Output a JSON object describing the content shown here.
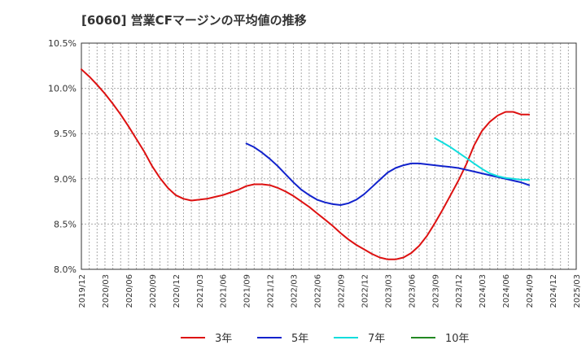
{
  "chart_data": {
    "type": "line",
    "title": "[6060]  営業CFマージンの平均値の推移",
    "xlabel": "",
    "ylabel": "",
    "ylim": [
      8.0,
      10.5
    ],
    "y_ticks": [
      "10.5%",
      "10.0%",
      "9.5%",
      "9.0%",
      "8.5%",
      "8.0%"
    ],
    "x_ticks": [
      "2019/12",
      "2020/03",
      "2020/06",
      "2020/09",
      "2020/12",
      "2021/03",
      "2021/06",
      "2021/09",
      "2021/12",
      "2022/03",
      "2022/06",
      "2022/09",
      "2022/12",
      "2023/03",
      "2023/06",
      "2023/09",
      "2023/12",
      "2024/03",
      "2024/06",
      "2024/09",
      "2024/12",
      "2025/03"
    ],
    "grid": true,
    "legend_position": "bottom",
    "series": [
      {
        "name": "3年",
        "color": "#dd1111",
        "x": [
          "2019/12",
          "2020/01",
          "2020/02",
          "2020/03",
          "2020/04",
          "2020/05",
          "2020/06",
          "2020/07",
          "2020/08",
          "2020/09",
          "2020/10",
          "2020/11",
          "2020/12",
          "2021/01",
          "2021/02",
          "2021/03",
          "2021/04",
          "2021/05",
          "2021/06",
          "2021/07",
          "2021/08",
          "2021/09",
          "2021/10",
          "2021/11",
          "2021/12",
          "2022/01",
          "2022/02",
          "2022/03",
          "2022/04",
          "2022/05",
          "2022/06",
          "2022/07",
          "2022/08",
          "2022/09",
          "2022/10",
          "2022/11",
          "2022/12",
          "2023/01",
          "2023/02",
          "2023/03",
          "2023/04",
          "2023/05",
          "2023/06",
          "2023/07",
          "2023/08",
          "2023/09",
          "2023/10",
          "2023/11",
          "2023/12",
          "2024/01",
          "2024/02",
          "2024/03",
          "2024/04",
          "2024/05",
          "2024/06",
          "2024/07",
          "2024/08",
          "2024/09"
        ],
        "values": [
          10.21,
          10.13,
          10.04,
          9.94,
          9.83,
          9.71,
          9.58,
          9.44,
          9.3,
          9.14,
          9.01,
          8.9,
          8.82,
          8.78,
          8.76,
          8.77,
          8.78,
          8.8,
          8.82,
          8.85,
          8.88,
          8.92,
          8.94,
          8.94,
          8.93,
          8.9,
          8.86,
          8.81,
          8.75,
          8.69,
          8.62,
          8.55,
          8.48,
          8.4,
          8.33,
          8.27,
          8.22,
          8.17,
          8.13,
          8.11,
          8.11,
          8.13,
          8.18,
          8.26,
          8.37,
          8.51,
          8.66,
          8.82,
          8.98,
          9.16,
          9.37,
          9.53,
          9.63,
          9.7,
          9.74,
          9.74,
          9.71,
          9.71
        ]
      },
      {
        "name": "5年",
        "color": "#1122cc",
        "x": [
          "2021/09",
          "2021/10",
          "2021/11",
          "2021/12",
          "2022/01",
          "2022/02",
          "2022/03",
          "2022/04",
          "2022/05",
          "2022/06",
          "2022/07",
          "2022/08",
          "2022/09",
          "2022/10",
          "2022/11",
          "2022/12",
          "2023/01",
          "2023/02",
          "2023/03",
          "2023/04",
          "2023/05",
          "2023/06",
          "2023/07",
          "2023/08",
          "2023/09",
          "2023/10",
          "2023/11",
          "2023/12",
          "2024/01",
          "2024/02",
          "2024/03",
          "2024/04",
          "2024/05",
          "2024/06",
          "2024/07",
          "2024/08",
          "2024/09"
        ],
        "values": [
          9.39,
          9.35,
          9.29,
          9.22,
          9.14,
          9.05,
          8.96,
          8.88,
          8.82,
          8.77,
          8.74,
          8.72,
          8.71,
          8.73,
          8.77,
          8.83,
          8.91,
          8.99,
          9.07,
          9.12,
          9.15,
          9.17,
          9.17,
          9.16,
          9.15,
          9.14,
          9.13,
          9.12,
          9.1,
          9.08,
          9.06,
          9.04,
          9.02,
          9.0,
          8.98,
          8.96,
          8.93
        ]
      },
      {
        "name": "7年",
        "color": "#11dddd",
        "x": [
          "2023/09",
          "2023/10",
          "2023/11",
          "2023/12",
          "2024/01",
          "2024/02",
          "2024/03",
          "2024/04",
          "2024/05",
          "2024/06",
          "2024/07",
          "2024/08",
          "2024/09"
        ],
        "values": [
          9.45,
          9.4,
          9.35,
          9.29,
          9.23,
          9.17,
          9.11,
          9.06,
          9.03,
          9.01,
          9.0,
          8.99,
          8.99
        ]
      },
      {
        "name": "10年",
        "color": "#228822",
        "x": [],
        "values": []
      }
    ]
  }
}
